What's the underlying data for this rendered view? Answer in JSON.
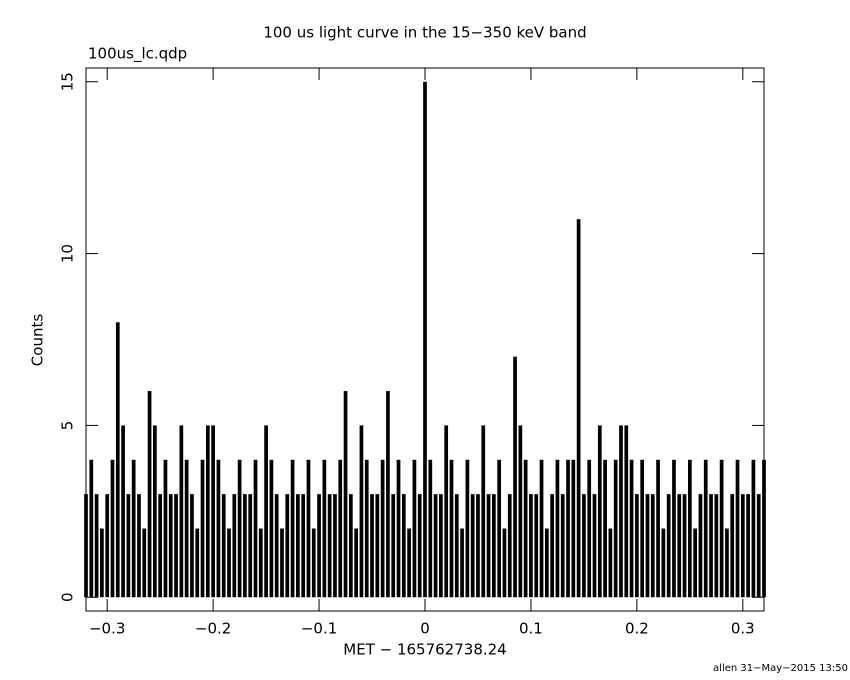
{
  "chart_data": {
    "type": "spike",
    "title": "100 us light curve in the 15−350 keV band",
    "subtitle": "100us_lc.qdp",
    "x_label": "MET − 165762738.24",
    "y_label": "Counts",
    "footer": "allen 31−May−2015 13:50",
    "color": "#000000",
    "xlim": [
      -0.32,
      0.32
    ],
    "ylim": [
      -0.4,
      15.4
    ],
    "xticks": [
      {
        "value": -0.3,
        "label": "−0.3"
      },
      {
        "value": -0.2,
        "label": "−0.2"
      },
      {
        "value": -0.1,
        "label": "−0.1"
      },
      0,
      0.1,
      0.2,
      0.3
    ],
    "yticks": [
      0,
      5,
      10,
      15
    ],
    "x": [
      -0.32,
      -0.315,
      -0.31,
      -0.305,
      -0.3,
      -0.295,
      -0.29,
      -0.285,
      -0.28,
      -0.275,
      -0.27,
      -0.265,
      -0.26,
      -0.255,
      -0.25,
      -0.245,
      -0.24,
      -0.235,
      -0.23,
      -0.225,
      -0.22,
      -0.215,
      -0.21,
      -0.205,
      -0.2,
      -0.195,
      -0.19,
      -0.185,
      -0.18,
      -0.175,
      -0.17,
      -0.165,
      -0.16,
      -0.155,
      -0.15,
      -0.145,
      -0.14,
      -0.135,
      -0.13,
      -0.125,
      -0.12,
      -0.115,
      -0.11,
      -0.105,
      -0.1,
      -0.095,
      -0.09,
      -0.085,
      -0.08,
      -0.075,
      -0.07,
      -0.065,
      -0.06,
      -0.055,
      -0.05,
      -0.045,
      -0.04,
      -0.035,
      -0.03,
      -0.025,
      -0.02,
      -0.015,
      -0.01,
      -0.005,
      0,
      0.005,
      0.01,
      0.015,
      0.02,
      0.025,
      0.03,
      0.035,
      0.04,
      0.045,
      0.05,
      0.055,
      0.06,
      0.065,
      0.07,
      0.075,
      0.08,
      0.085,
      0.09,
      0.095,
      0.1,
      0.105,
      0.11,
      0.115,
      0.12,
      0.125,
      0.13,
      0.135,
      0.14,
      0.145,
      0.15,
      0.155,
      0.16,
      0.165,
      0.17,
      0.175,
      0.18,
      0.185,
      0.19,
      0.195,
      0.2,
      0.205,
      0.21,
      0.215,
      0.22,
      0.225,
      0.23,
      0.235,
      0.24,
      0.245,
      0.25,
      0.255,
      0.26,
      0.265,
      0.27,
      0.275,
      0.28,
      0.285,
      0.29,
      0.295,
      0.3,
      0.305,
      0.31,
      0.315,
      0.32
    ],
    "values": [
      3,
      4,
      3,
      2,
      3,
      4,
      8,
      5,
      3,
      4,
      3,
      2,
      6,
      5,
      3,
      4,
      3,
      3,
      5,
      4,
      3,
      2,
      4,
      5,
      5,
      4,
      3,
      2,
      3,
      4,
      3,
      3,
      4,
      2,
      5,
      4,
      3,
      2,
      3,
      4,
      3,
      3,
      4,
      2,
      3,
      4,
      3,
      3,
      4,
      6,
      3,
      2,
      5,
      4,
      3,
      3,
      4,
      6,
      3,
      4,
      3,
      2,
      4,
      3,
      15,
      4,
      3,
      3,
      5,
      4,
      3,
      2,
      4,
      3,
      3,
      5,
      3,
      3,
      4,
      2,
      3,
      7,
      5,
      4,
      3,
      3,
      4,
      2,
      3,
      4,
      3,
      4,
      4,
      11,
      3,
      4,
      3,
      5,
      4,
      2,
      4,
      5,
      5,
      4,
      3,
      4,
      3,
      3,
      4,
      2,
      3,
      4,
      3,
      3,
      4,
      2,
      3,
      4,
      3,
      3,
      4,
      2,
      3,
      4,
      3,
      3,
      4,
      3,
      4
    ]
  }
}
